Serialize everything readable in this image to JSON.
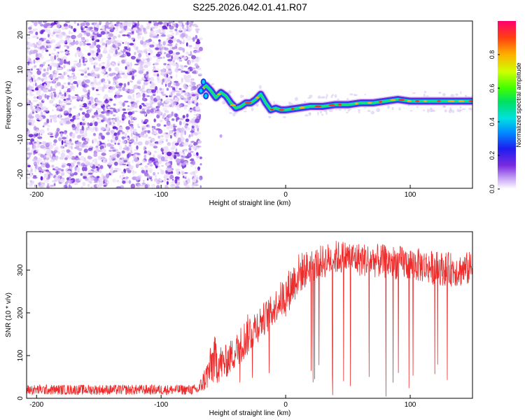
{
  "title": "S225.2026.042.01.41.R07",
  "colors": {
    "snr_line": "#ee2b2b",
    "noise_dark": "#6a12d8",
    "noise_light": "#d9c6f2",
    "axis": "#000000",
    "background": "#ffffff"
  },
  "chart_data": [
    {
      "id": "spectrogram",
      "type": "heatmap",
      "title": "",
      "xlabel": "Height of straight line (km)",
      "ylabel": "Frequency (Hz)",
      "xlim": [
        -208,
        150
      ],
      "ylim": [
        -24,
        24
      ],
      "x_ticks": [
        -200,
        -100,
        0,
        100
      ],
      "x_tick_labels": [
        "-200",
        "-100",
        "0",
        "100"
      ],
      "y_ticks": [
        -20,
        -10,
        0,
        10,
        20
      ],
      "y_tick_labels": [
        "-20",
        "-10",
        "0",
        "10",
        "20"
      ],
      "noise_region_x": [
        -208,
        -68
      ],
      "signal_ridge": {
        "description": "narrow high-amplitude ridge tracing dominant frequency",
        "x": [
          -68,
          -64,
          -60,
          -56,
          -52,
          -48,
          -44,
          -40,
          -36,
          -32,
          -28,
          -24,
          -20,
          -16,
          -12,
          -8,
          -4,
          0,
          10,
          20,
          30,
          40,
          50,
          60,
          70,
          80,
          90,
          100,
          110,
          120,
          130,
          140,
          150
        ],
        "frequency": [
          4,
          5.5,
          4,
          2,
          3.5,
          2.5,
          0.5,
          -1,
          -0.5,
          0.5,
          0.5,
          1.5,
          3,
          0.5,
          -1.5,
          -1,
          -1.5,
          -1.5,
          -1,
          -0.5,
          -0.5,
          0,
          0,
          0.5,
          0.5,
          1,
          1.5,
          1,
          1,
          1,
          1,
          1,
          1
        ]
      },
      "colorbar": {
        "label": "Normalized spectral amplitude",
        "range": [
          0,
          1
        ],
        "ticks": [
          0.0,
          0.2,
          0.4,
          0.6,
          0.8
        ],
        "tick_labels": [
          "0.0",
          "0.2",
          "0.4",
          "0.6",
          "0.8"
        ]
      }
    },
    {
      "id": "snr",
      "type": "line",
      "title": "",
      "xlabel": "Height of straight line (km)",
      "ylabel": "SNR (10 * v/v)",
      "xlim": [
        -208,
        150
      ],
      "ylim": [
        0,
        390
      ],
      "x_ticks": [
        -200,
        -100,
        0,
        100
      ],
      "x_tick_labels": [
        "-200",
        "-100",
        "0",
        "100"
      ],
      "y_ticks": [
        0,
        100,
        200,
        300
      ],
      "y_tick_labels": [
        "0",
        "100",
        "200",
        "300"
      ],
      "envelope": {
        "x": [
          -208,
          -70,
          -62,
          -58,
          -50,
          -40,
          -30,
          -20,
          -12,
          -5,
          0,
          10,
          20,
          30,
          40,
          50,
          60,
          80,
          100,
          120,
          140,
          150
        ],
        "mean": [
          20,
          20,
          60,
          90,
          80,
          110,
          150,
          180,
          200,
          230,
          240,
          290,
          310,
          320,
          330,
          330,
          325,
          320,
          315,
          305,
          300,
          305
        ],
        "spread": [
          12,
          12,
          40,
          60,
          40,
          40,
          50,
          40,
          40,
          40,
          50,
          50,
          40,
          40,
          40,
          40,
          40,
          40,
          40,
          40,
          40,
          40
        ]
      }
    }
  ]
}
